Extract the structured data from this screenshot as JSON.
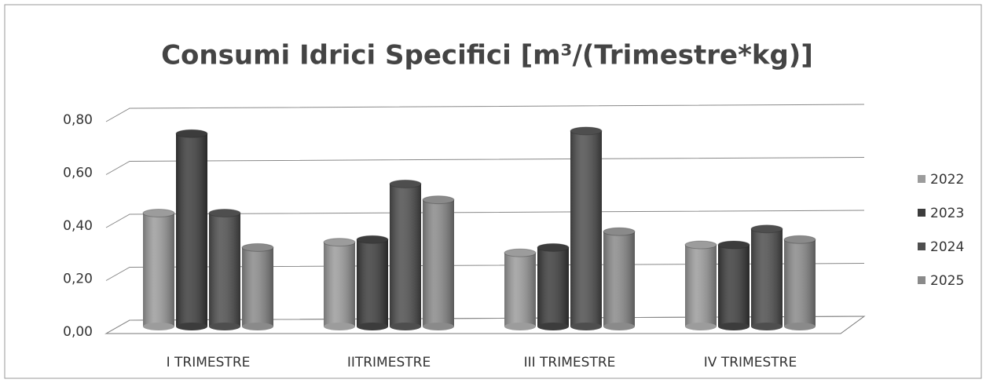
{
  "chart_data": {
    "type": "bar3d",
    "title": "Consumi Idrici Specifici [m³/(Trimestre*kg)]",
    "categories": [
      "I TRIMESTRE",
      "IITRIMESTRE",
      "III TRIMESTRE",
      "IV TRIMESTRE"
    ],
    "series": [
      {
        "name": "2022",
        "color": "#9c9c9c",
        "values": [
          0.44,
          0.33,
          0.29,
          0.32
        ]
      },
      {
        "name": "2023",
        "color": "#3c3c3c",
        "values": [
          0.74,
          0.34,
          0.31,
          0.32
        ]
      },
      {
        "name": "2024",
        "color": "#4e4e4e",
        "values": [
          0.44,
          0.55,
          0.75,
          0.38
        ]
      },
      {
        "name": "2025",
        "color": "#8a8a8a",
        "values": [
          0.31,
          0.49,
          0.37,
          0.34
        ]
      }
    ],
    "ylim": [
      0,
      0.8
    ],
    "yticks": [
      {
        "value": 0,
        "label": "0,00"
      },
      {
        "value": 0.2,
        "label": "0,20"
      },
      {
        "value": 0.4,
        "label": "0,40"
      },
      {
        "value": 0.6,
        "label": "0,60"
      },
      {
        "value": 0.8,
        "label": "0,80"
      }
    ],
    "grid": true,
    "legend": "right"
  }
}
